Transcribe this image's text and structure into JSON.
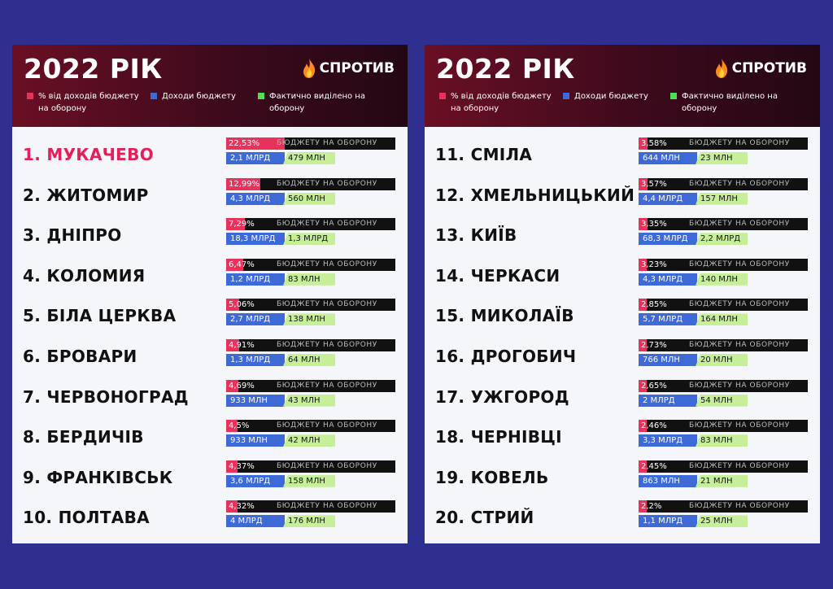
{
  "colors": {
    "pct": "#e8315b",
    "income": "#3d6ad6",
    "allocated": "#c7ef9a",
    "header": "#5a0d22",
    "background": "#2e2f8f"
  },
  "brand": {
    "name": "СПРОТИВ",
    "icon": "flame-icon"
  },
  "panels": [
    {
      "title": "2022 РІК",
      "legend": {
        "pct": "% від доходів бюджету на оборону",
        "income": "Доходи бюджету",
        "allocated": "Фактично виділено на оборону"
      }
    },
    {
      "title": "2022 РІК",
      "legend": {
        "pct": "% від доходів бюджету на оборону",
        "income": "Доходи бюджету",
        "allocated": "Фактично виділено на оборону"
      }
    }
  ],
  "defense_label": "БЮДЖЕТУ НА ОБОРОНУ",
  "chart_data": {
    "type": "bar",
    "categories": [
      "1. МУКАЧЕВО",
      "2. ЖИТОМИР",
      "3. ДНІПРО",
      "4. КОЛОМИЯ",
      "5. БІЛА ЦЕРКВА",
      "6. БРОВАРИ",
      "7. ЧЕРВОНОГРАД",
      "8. БЕРДИЧІВ",
      "9. ФРАНКІВСЬК",
      "10. ПОЛТАВА",
      "11. СМІЛА",
      "12. ХМЕЛЬНИЦЬКИЙ",
      "13. КИЇВ",
      "14. ЧЕРКАСИ",
      "15. МИКОЛАЇВ",
      "16. ДРОГОБИЧ",
      "17. УЖГОРОД",
      "18. ЧЕРНІВЦІ",
      "19. КОВЕЛЬ",
      "20. СТРИЙ"
    ],
    "series": [
      {
        "name": "% від доходів бюджету на оборону",
        "values": [
          22.53,
          12.99,
          7.29,
          6.47,
          5.06,
          4.91,
          4.69,
          4.5,
          4.37,
          4.32,
          3.58,
          3.57,
          3.35,
          3.23,
          2.85,
          2.73,
          2.65,
          2.46,
          2.45,
          2.2
        ],
        "labels": [
          "22,53%",
          "12,99%",
          "7,29%",
          "6,47%",
          "5,06%",
          "4,91%",
          "4,69%",
          "4,5%",
          "4,37%",
          "4,32%",
          "3,58%",
          "3,57%",
          "3,35%",
          "3,23%",
          "2,85%",
          "2,73%",
          "2,65%",
          "2,46%",
          "2,45%",
          "2,2%"
        ]
      },
      {
        "name": "Доходи бюджету",
        "labels": [
          "2,1 МЛРД",
          "4,3 МЛРД",
          "18,3 МЛРД",
          "1,2 МЛРД",
          "2,7 МЛРД",
          "1,3 МЛРД",
          "933 МЛН",
          "933 МЛН",
          "3,6 МЛРД",
          "4 МЛРД",
          "644 МЛН",
          "4,4 МЛРД",
          "68,3 МЛРД",
          "4,3 МЛРД",
          "5,7 МЛРД",
          "766 МЛН",
          "2 МЛРД",
          "3,3 МЛРД",
          "863 МЛН",
          "1,1 МЛРД"
        ]
      },
      {
        "name": "Фактично виділено на оборону",
        "labels": [
          "479 МЛН",
          "560 МЛН",
          "1,3 МЛРД",
          "83 МЛН",
          "138 МЛН",
          "64 МЛН",
          "43 МЛН",
          "42 МЛН",
          "158 МЛН",
          "176 МЛН",
          "23 МЛН",
          "157 МЛН",
          "2,2 МЛРД",
          "140 МЛН",
          "164 МЛН",
          "20 МЛН",
          "54 МЛН",
          "83 МЛН",
          "21 МЛН",
          "25 МЛН"
        ]
      }
    ],
    "title": "2022 РІК"
  }
}
